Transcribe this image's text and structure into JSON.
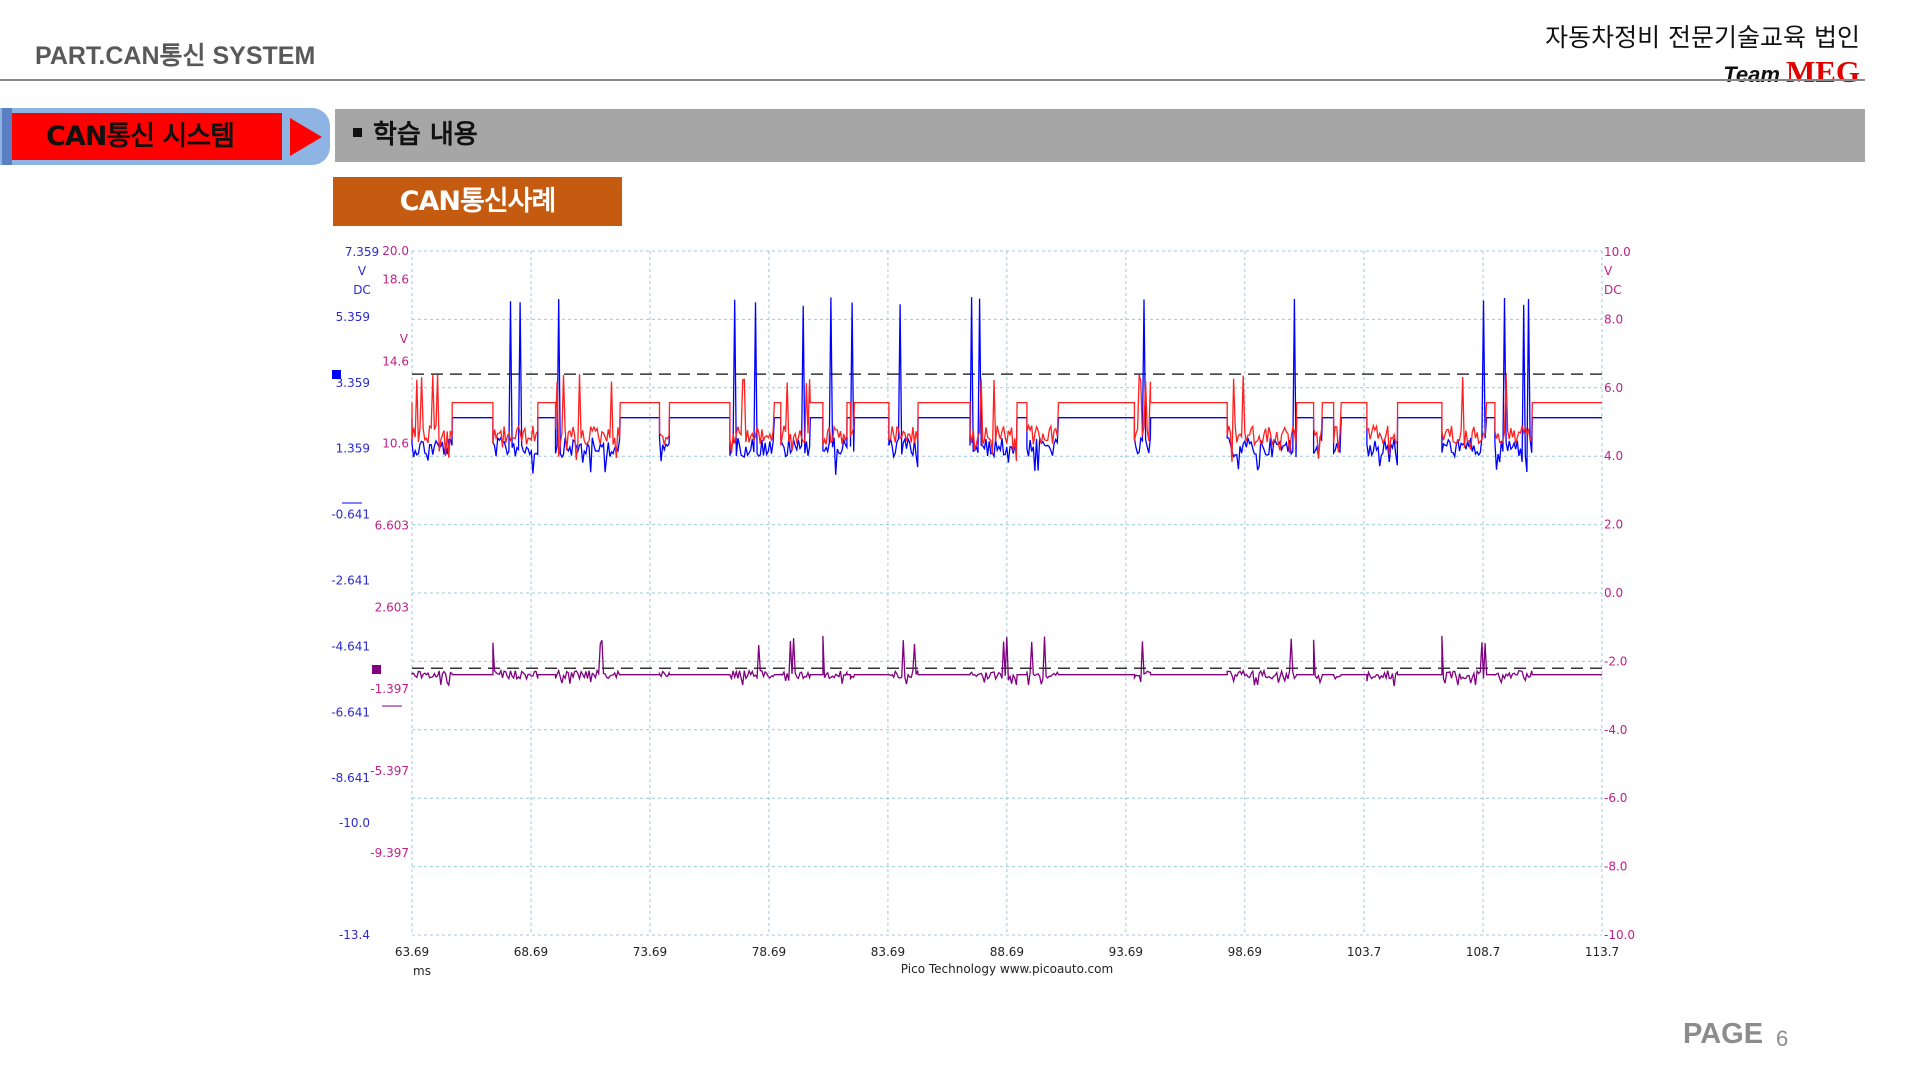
{
  "header": {
    "left_title": "PART.CAN통신 SYSTEM",
    "org": "자동차정비 전문기술교육 법인",
    "team_prefix": "Team",
    "team_name": "MEG"
  },
  "section": {
    "label": "CAN통신 시스템"
  },
  "topic": {
    "label": "학습 내용"
  },
  "case_label": "CAN통신사례",
  "footer": {
    "page_label": "PAGE",
    "page_number": "6"
  },
  "colors": {
    "ch_blue": "#0000ff",
    "ch_red": "#ff2020",
    "ch_purple": "#800080",
    "left_axis": "#2a2ad0",
    "right_axis": "#c0208a",
    "grid": "#9cc9dc",
    "section_red": "#ff0000",
    "section_blue": "#8db4e2",
    "topic_gray": "#a6a6a6",
    "case_orange": "#c55a11"
  },
  "chart_data": {
    "type": "line",
    "title": "",
    "xlabel": "ms",
    "footer_text": "Pico Technology   www.picoauto.com",
    "x_ticks": [
      "63.69",
      "68.69",
      "73.69",
      "78.69",
      "83.69",
      "88.69",
      "93.69",
      "98.69",
      "103.7",
      "108.7",
      "113.7"
    ],
    "xlim": [
      63.69,
      113.7
    ],
    "grid": true,
    "left_axis": {
      "unit_lines": [
        "7.359",
        "V",
        "DC"
      ],
      "ticks": [
        "5.359",
        "3.359",
        "1.359",
        "-0.641",
        "-2.641",
        "-4.641",
        "-6.641",
        "-8.641",
        "-10.0",
        "-13.4"
      ],
      "ylim": [
        -13.4,
        7.359
      ]
    },
    "mid_axis": {
      "unit": "V",
      "ticks": [
        "20.0",
        "18.6",
        "14.6",
        "10.6",
        "6.603",
        "2.603",
        "-1.397",
        "-5.397",
        "-9.397"
      ]
    },
    "right_axis": {
      "unit_lines": [
        "10.0",
        "V",
        "DC"
      ],
      "ticks": [
        "8.0",
        "6.0",
        "4.0",
        "2.0",
        "0.0",
        "-2.0",
        "-4.0",
        "-6.0",
        "-8.0",
        "-10.0"
      ],
      "ylim": [
        -10.0,
        10.0
      ]
    },
    "thresholds": [
      6.4,
      -2.2
    ],
    "frames": [
      [
        63.69,
        65.38
      ],
      [
        67.09,
        68.98
      ],
      [
        69.72,
        72.44
      ],
      [
        74.09,
        74.51
      ],
      [
        77.05,
        78.92
      ],
      [
        79.19,
        80.43
      ],
      [
        80.96,
        81.97
      ],
      [
        82.12,
        82.28
      ],
      [
        83.73,
        84.96
      ],
      [
        87.14,
        89.12
      ],
      [
        89.53,
        90.86
      ],
      [
        94.05,
        94.73
      ],
      [
        97.95,
        100.87
      ],
      [
        101.58,
        101.95
      ],
      [
        102.42,
        102.74
      ],
      [
        103.82,
        105.11
      ],
      [
        106.97,
        108.85
      ],
      [
        109.2,
        110.77
      ]
    ],
    "series": [
      {
        "name": "",
        "axis": "left",
        "recessive": 2.3,
        "dominant": 1.4,
        "spike": 6.0
      },
      {
        "name": "",
        "axis": "mid",
        "recessive": 12.6,
        "dominant": 11.0,
        "spike": 14.0
      },
      {
        "name": "",
        "axis": "left",
        "recessive": -5.5,
        "dominant": -5.5,
        "spike": -4.3
      }
    ]
  }
}
